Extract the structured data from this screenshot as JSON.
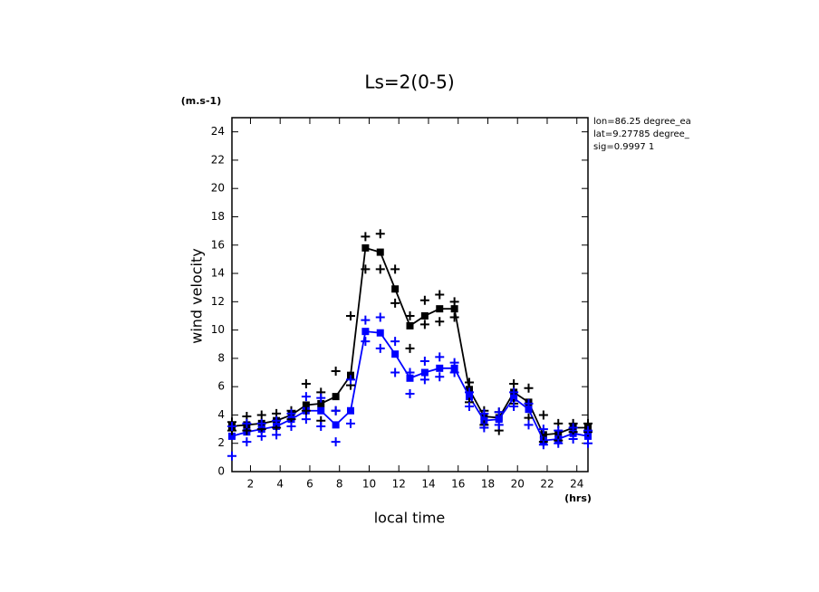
{
  "chart_data": {
    "type": "line",
    "title": "Ls=2(0-5)",
    "y_units": "(m.s-1)",
    "y_label": "wind velocity",
    "x_label": "local time",
    "x_units": "(hrs)",
    "annotations": [
      "lon=86.25 degree_ea",
      "lat=9.27785 degree_",
      "sig=0.9997 1"
    ],
    "x": [
      0.75,
      1.75,
      2.75,
      3.75,
      4.75,
      5.75,
      6.75,
      7.75,
      8.75,
      9.75,
      10.75,
      11.75,
      12.75,
      13.75,
      14.75,
      15.75,
      16.75,
      17.75,
      18.75,
      19.75,
      20.75,
      21.75,
      22.75,
      23.75,
      24.75
    ],
    "series": [
      {
        "color": "#000000",
        "style": "line",
        "values": [
          3.2,
          3.3,
          3.4,
          3.6,
          4.0,
          4.7,
          4.8,
          5.3,
          6.8,
          15.8,
          15.5,
          12.9,
          10.3,
          11.0,
          11.5,
          11.5,
          5.8,
          3.9,
          3.8,
          5.6,
          4.9,
          2.6,
          2.7,
          3.1,
          3.1
        ]
      },
      {
        "color": "#0000ff",
        "style": "line",
        "values": [
          2.5,
          2.8,
          3.0,
          3.2,
          3.7,
          4.3,
          4.3,
          3.3,
          4.3,
          9.9,
          9.8,
          8.3,
          6.6,
          7.0,
          7.3,
          7.3,
          5.3,
          3.6,
          3.7,
          5.2,
          4.4,
          2.2,
          2.3,
          2.7,
          2.5
        ]
      },
      {
        "color": "#000000",
        "style": "cross",
        "values": [
          3.5,
          3.9,
          4.0,
          4.1,
          4.3,
          6.2,
          5.6,
          7.1,
          11.0,
          16.6,
          16.8,
          14.3,
          11.0,
          12.1,
          12.5,
          12.0,
          6.3,
          4.3,
          4.2,
          6.2,
          5.9,
          4.0,
          3.4,
          3.4,
          3.4
        ]
      },
      {
        "color": "#000000",
        "style": "cross",
        "values": [
          2.9,
          2.9,
          3.0,
          3.1,
          3.7,
          4.3,
          3.6,
          4.3,
          6.1,
          14.3,
          14.3,
          11.9,
          8.7,
          10.4,
          10.6,
          10.9,
          4.9,
          3.3,
          2.9,
          4.8,
          3.8,
          2.1,
          2.2,
          2.8,
          2.8
        ]
      },
      {
        "color": "#0000ff",
        "style": "cross",
        "values": [
          3.2,
          3.4,
          3.4,
          3.6,
          4.1,
          5.3,
          5.2,
          4.3,
          6.5,
          10.7,
          10.9,
          9.2,
          7.0,
          7.8,
          8.1,
          7.7,
          5.6,
          4.1,
          4.2,
          5.6,
          4.8,
          3.0,
          2.9,
          3.1,
          2.9
        ]
      },
      {
        "color": "#0000ff",
        "style": "cross",
        "values": [
          1.1,
          2.1,
          2.5,
          2.6,
          3.2,
          3.7,
          3.2,
          2.1,
          3.4,
          9.2,
          8.7,
          7.0,
          5.5,
          6.5,
          6.7,
          7.0,
          4.6,
          3.1,
          3.3,
          4.6,
          3.3,
          1.9,
          2.0,
          2.3,
          2.0
        ]
      }
    ],
    "xlim": [
      0.75,
      24.75
    ],
    "xticks": [
      2,
      4,
      6,
      8,
      10,
      12,
      14,
      16,
      18,
      20,
      22,
      24
    ],
    "ylim": [
      0,
      25
    ],
    "yticks": [
      0,
      2,
      4,
      6,
      8,
      10,
      12,
      14,
      16,
      18,
      20,
      22,
      24
    ],
    "grid": false
  }
}
